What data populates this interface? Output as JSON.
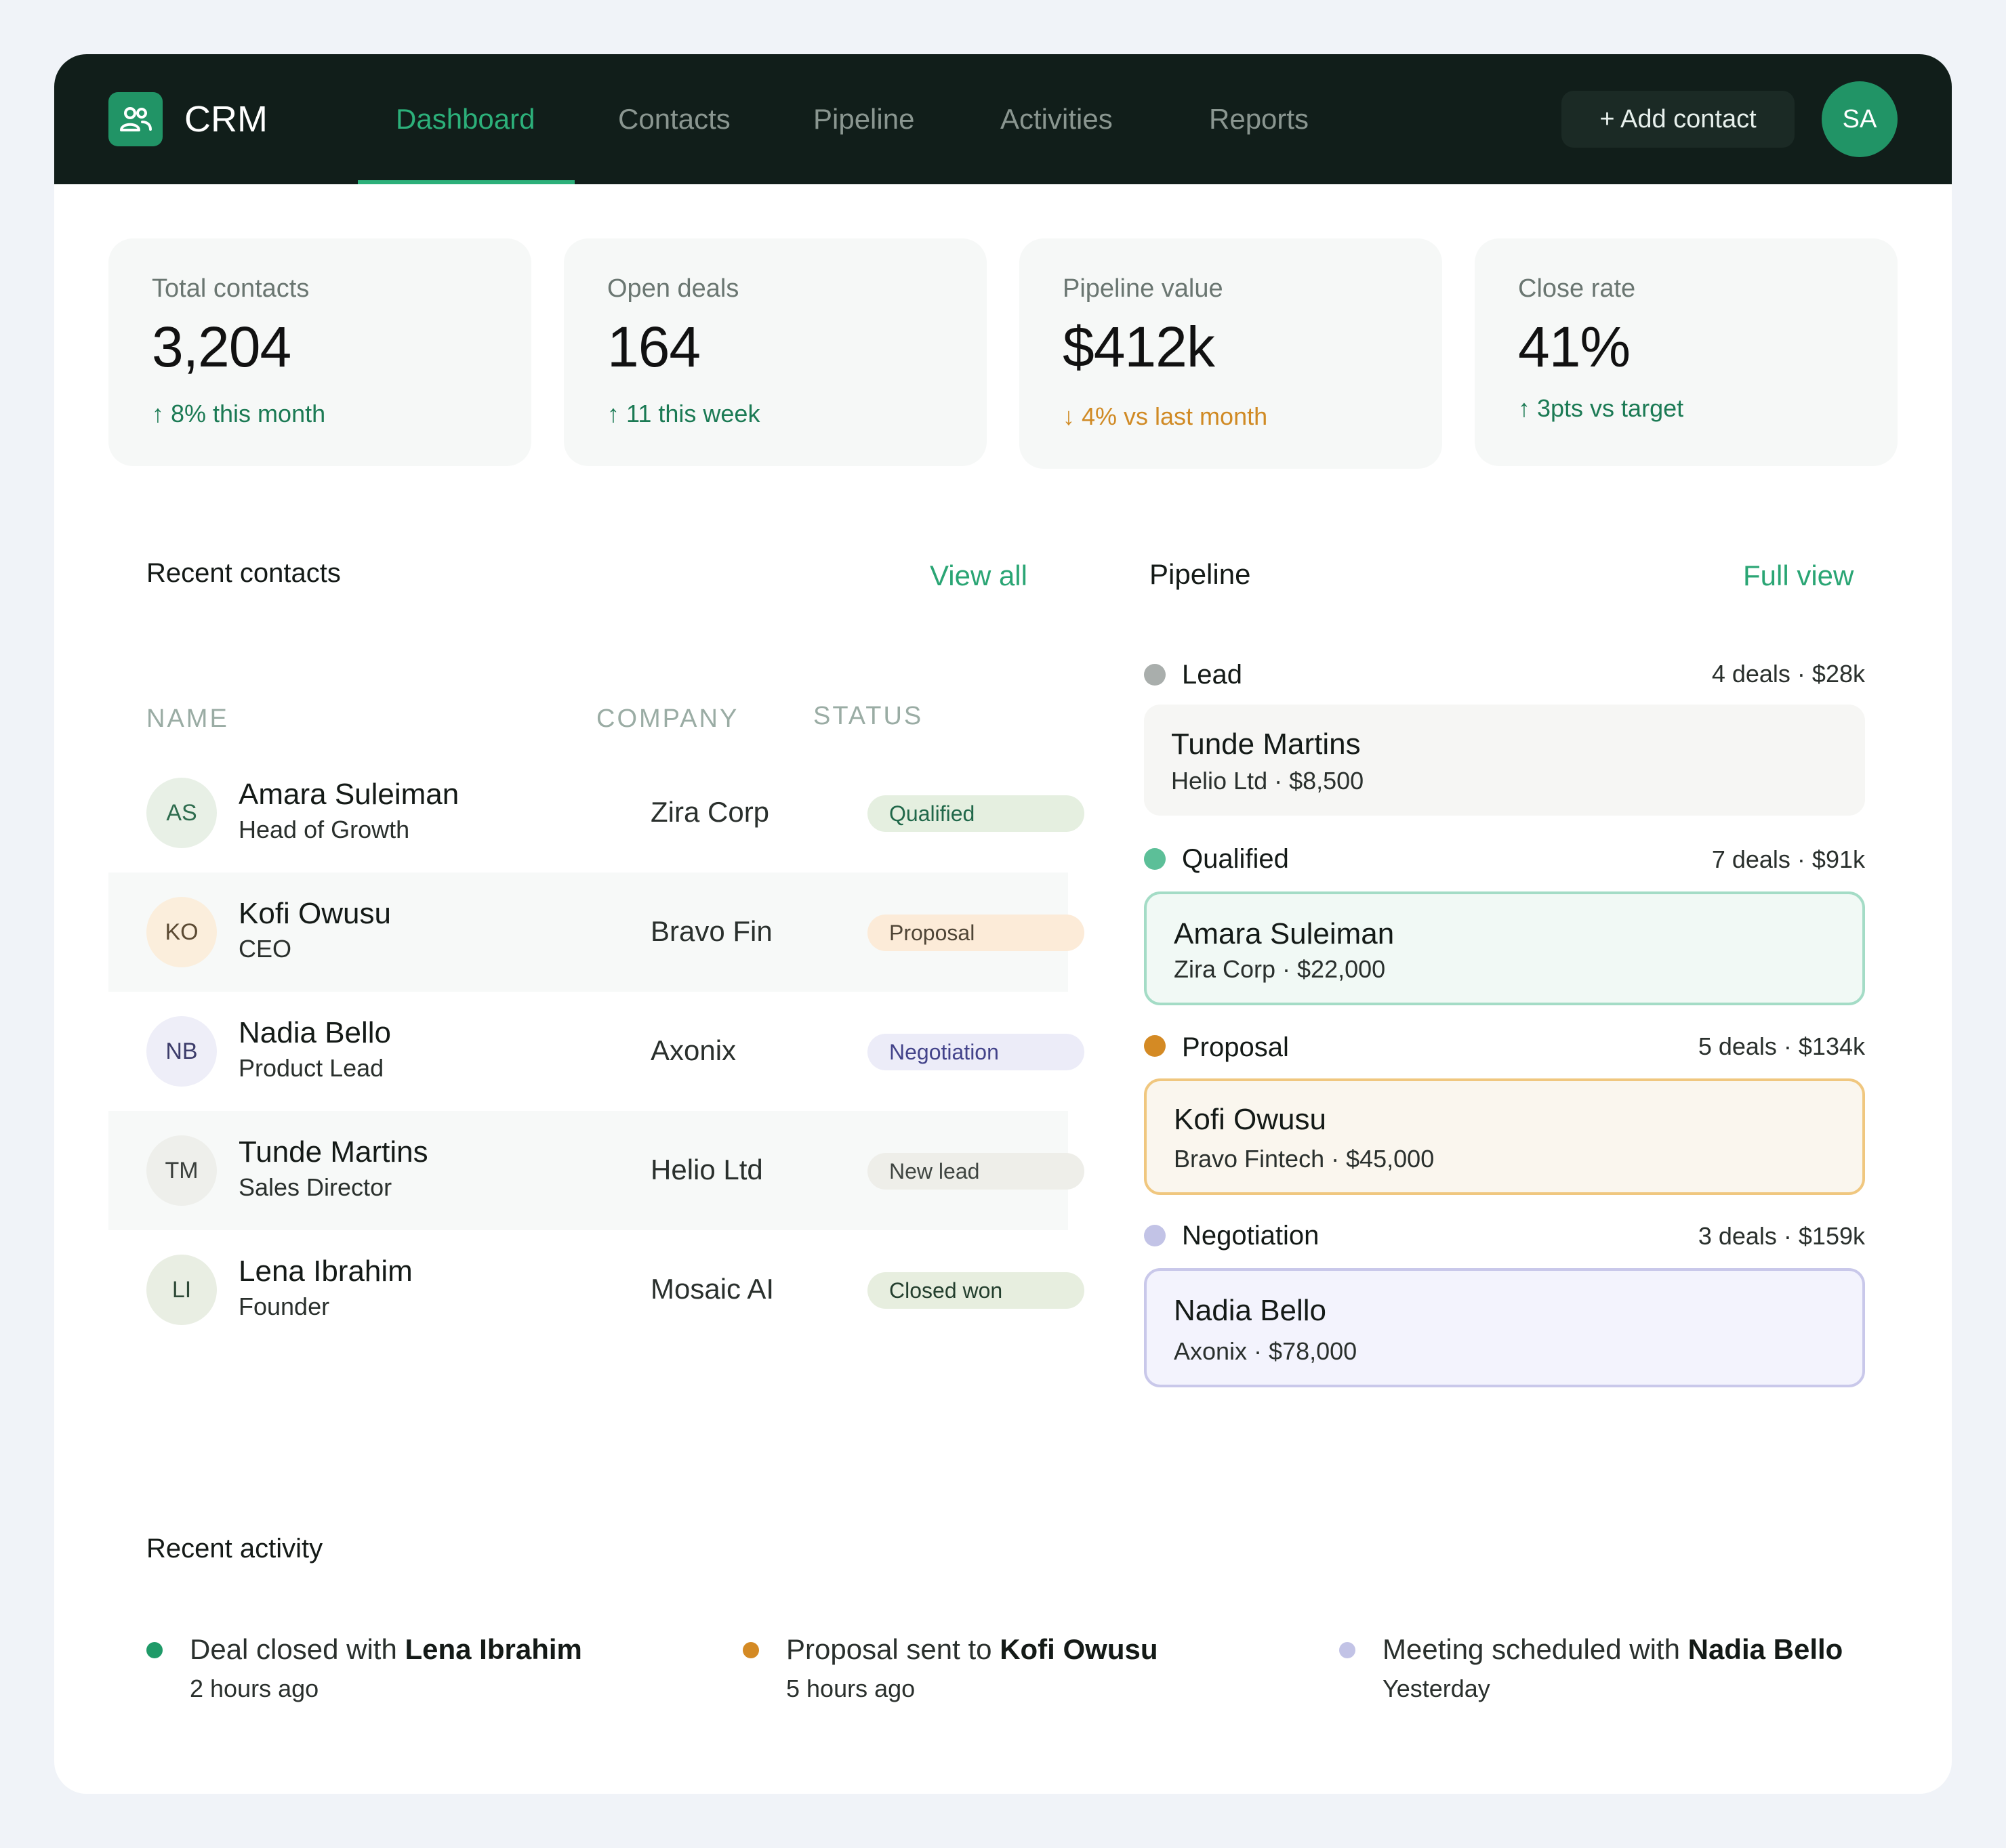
{
  "app": {
    "title": "CRM",
    "user_initials": "SA"
  },
  "nav": {
    "items": [
      "Dashboard",
      "Contacts",
      "Pipeline",
      "Activities",
      "Reports"
    ],
    "active": "Dashboard",
    "add_button": "+ Add contact"
  },
  "stats": [
    {
      "label": "Total contacts",
      "value": "3,204",
      "trend": "↑ 8% this month",
      "direction": "up"
    },
    {
      "label": "Open deals",
      "value": "164",
      "trend": "↑ 11 this week",
      "direction": "up"
    },
    {
      "label": "Pipeline value",
      "value": "$412k",
      "trend": "↓ 4% vs last month",
      "direction": "down"
    },
    {
      "label": "Close rate",
      "value": "41%",
      "trend": "↑ 3pts vs target",
      "direction": "up"
    }
  ],
  "contacts": {
    "title": "Recent contacts",
    "view_all": "View all",
    "columns": [
      "NAME",
      "COMPANY",
      "STATUS"
    ],
    "rows": [
      {
        "initials": "AS",
        "name": "Amara Suleiman",
        "role": "Head of Growth",
        "company": "Zira Corp",
        "status": "Qualified"
      },
      {
        "initials": "KO",
        "name": "Kofi Owusu",
        "role": "CEO",
        "company": "Bravo Fin",
        "status": "Proposal"
      },
      {
        "initials": "NB",
        "name": "Nadia Bello",
        "role": "Product Lead",
        "company": "Axonix",
        "status": "Negotiation"
      },
      {
        "initials": "TM",
        "name": "Tunde Martins",
        "role": "Sales Director",
        "company": "Helio Ltd",
        "status": "New lead"
      },
      {
        "initials": "LI",
        "name": "Lena Ibrahim",
        "role": "Founder",
        "company": "Mosaic AI",
        "status": "Closed won"
      }
    ]
  },
  "pipeline": {
    "title": "Pipeline",
    "full_view": "Full view",
    "stages": [
      {
        "name": "Lead",
        "meta": "4 deals · $28k",
        "color": "#a9aeac",
        "deal_name": "Tunde Martins",
        "deal_detail": "Helio Ltd · $8,500"
      },
      {
        "name": "Qualified",
        "meta": "7 deals · $91k",
        "color": "#5cbf98",
        "deal_name": "Amara Suleiman",
        "deal_detail": "Zira Corp · $22,000"
      },
      {
        "name": "Proposal",
        "meta": "5 deals · $134k",
        "color": "#d48a24",
        "deal_name": "Kofi Owusu",
        "deal_detail": "Bravo Fintech · $45,000"
      },
      {
        "name": "Negotiation",
        "meta": "3 deals · $159k",
        "color": "#c2c3e6",
        "deal_name": "Nadia Bello",
        "deal_detail": "Axonix · $78,000"
      }
    ]
  },
  "activity": {
    "title": "Recent activity",
    "items": [
      {
        "text": "Deal closed with ",
        "person": "Lena Ibrahim",
        "time": "2 hours ago",
        "color": "#1f9a68"
      },
      {
        "text": "Proposal sent to ",
        "person": "Kofi Owusu",
        "time": "5 hours ago",
        "color": "#d48a24"
      },
      {
        "text": "Meeting scheduled with ",
        "person": "Nadia Bello",
        "time": "Yesterday",
        "color": "#c2c3e6"
      }
    ]
  }
}
